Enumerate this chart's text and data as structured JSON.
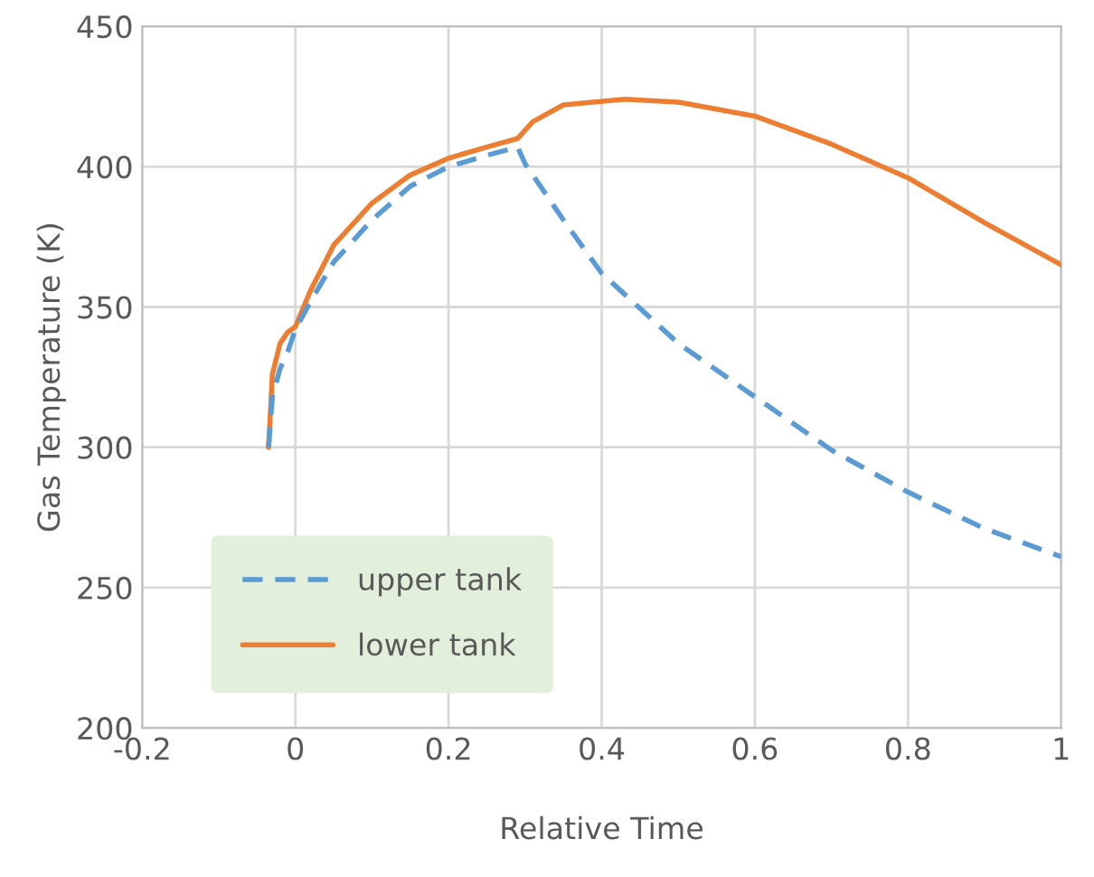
{
  "chart_data": {
    "type": "line",
    "xlabel": "Relative Time",
    "ylabel": "Gas Temperature (K)",
    "xlim": [
      -0.2,
      1
    ],
    "xticks": [
      -0.2,
      0,
      0.2,
      0.4,
      0.6,
      0.8,
      1
    ],
    "ylim": [
      200,
      450
    ],
    "yticks": [
      200,
      250,
      300,
      350,
      400,
      450
    ],
    "grid": true,
    "legend": "bottom left",
    "marker": "none",
    "series": [
      {
        "name": "upper tank",
        "color": "#5b9bd5",
        "line_style": "dashed",
        "x": [
          -0.035,
          -0.03,
          -0.02,
          -0.01,
          0,
          0.02,
          0.05,
          0.1,
          0.15,
          0.2,
          0.25,
          0.29,
          0.3,
          0.35,
          0.4,
          0.5,
          0.6,
          0.7,
          0.8,
          0.9,
          1.0
        ],
        "values": [
          300,
          318,
          328,
          334,
          342,
          352,
          366,
          381,
          393,
          400,
          404,
          407,
          401,
          381,
          362,
          337,
          318,
          299,
          284,
          271,
          261
        ]
      },
      {
        "name": "lower tank",
        "color": "#ed7d31",
        "line_style": "solid",
        "x": [
          -0.035,
          -0.03,
          -0.02,
          -0.01,
          0,
          0.02,
          0.05,
          0.1,
          0.15,
          0.2,
          0.25,
          0.29,
          0.31,
          0.35,
          0.43,
          0.5,
          0.6,
          0.7,
          0.8,
          0.9,
          1.0
        ],
        "values": [
          300,
          326,
          337,
          341,
          343,
          356,
          372,
          387,
          397,
          403,
          407,
          410,
          416,
          422,
          424,
          423,
          418,
          408,
          396,
          380,
          365
        ]
      }
    ]
  }
}
